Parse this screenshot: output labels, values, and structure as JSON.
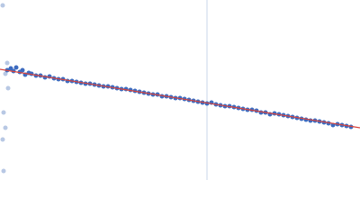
{
  "chart_data": {
    "type": "scatter",
    "xlim": [
      0,
      400
    ],
    "ylim": [
      0,
      200
    ],
    "vline": {
      "x": 230,
      "color": "#c8d4e8"
    },
    "fit": {
      "x": [
        0,
        400
      ],
      "y": [
        123,
        58
      ],
      "color": "#d9423a"
    },
    "series": [
      {
        "color": "#b8c8e4",
        "x": [
          3,
          8,
          6,
          9,
          4,
          6,
          3,
          4
        ],
        "values": [
          194,
          130,
          118,
          102,
          75,
          58,
          45,
          10
        ]
      },
      {
        "color": "#3d6bbf",
        "x": [
          8,
          12,
          15,
          18,
          22,
          25,
          28,
          32,
          35,
          40,
          45,
          50,
          55,
          60,
          65,
          70,
          75,
          80,
          85,
          90,
          95,
          100,
          105,
          110,
          115,
          120,
          125,
          130,
          135,
          140,
          145,
          150,
          155,
          160,
          165,
          170,
          175,
          180,
          185,
          190,
          195,
          200,
          205,
          210,
          215,
          220,
          225,
          230,
          235,
          240,
          245,
          250,
          255,
          260,
          265,
          270,
          275,
          280,
          285,
          290,
          295,
          300,
          305,
          310,
          315,
          320,
          325,
          330,
          335,
          340,
          345,
          350,
          355,
          360,
          365,
          370,
          375,
          380,
          385,
          390
        ],
        "values": [
          122,
          124,
          121,
          125,
          120,
          122,
          117,
          119,
          118,
          116,
          116,
          114,
          115,
          113,
          112,
          112,
          110,
          110,
          109,
          108,
          107,
          107,
          106,
          105,
          104,
          104,
          103,
          102,
          101,
          101,
          100,
          99,
          98,
          97,
          96,
          95,
          95,
          93,
          93,
          92,
          91,
          91,
          90,
          89,
          88,
          87,
          86,
          85,
          86,
          84,
          83,
          82,
          82,
          81,
          80,
          79,
          78,
          78,
          77,
          75,
          75,
          73,
          74,
          73,
          72,
          71,
          70,
          69,
          68,
          67,
          66,
          66,
          65,
          64,
          63,
          61,
          62,
          61,
          60,
          59
        ]
      }
    ]
  }
}
